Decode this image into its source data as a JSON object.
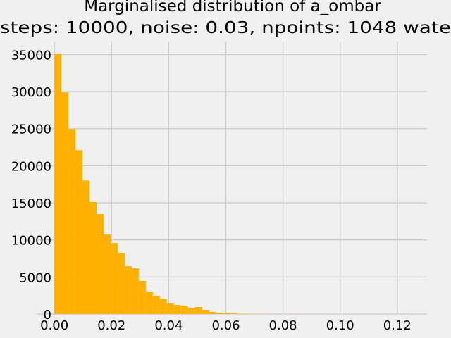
{
  "chart_data": {
    "type": "histogram",
    "title": "Marginalised distribution of a_ombar",
    "subtitle": "steps: 10000, noise: 0.03, npoints: 1048 wate",
    "color": "#ffb000",
    "bins": [
      0,
      0.00246,
      0.00492,
      0.00738,
      0.00984,
      0.0123,
      0.01476,
      0.01722,
      0.01968,
      0.02214,
      0.0246,
      0.02706,
      0.02952,
      0.03198,
      0.03444,
      0.0369,
      0.03936,
      0.04182,
      0.04428,
      0.04674,
      0.0492,
      0.05166,
      0.05412,
      0.05658,
      0.05904,
      0.0615,
      0.06396,
      0.06642,
      0.06888,
      0.07134,
      0.0738,
      0.07626,
      0.07872,
      0.08118,
      0.08364,
      0.0861,
      0.08856,
      0.09102,
      0.09348,
      0.09594,
      0.0984,
      0.10086,
      0.10332,
      0.10578,
      0.10824,
      0.1107,
      0.11316,
      0.11562,
      0.11808,
      0.12054,
      0.123
    ],
    "values": [
      35100,
      29900,
      24950,
      22100,
      18000,
      15100,
      13470,
      10720,
      9580,
      8160,
      6450,
      6170,
      4460,
      3040,
      2470,
      2090,
      1420,
      1230,
      1140,
      760,
      950,
      570,
      280,
      190,
      100,
      60,
      40,
      30,
      20,
      15,
      10,
      10,
      5,
      5,
      5,
      3,
      3,
      2,
      2,
      2,
      1,
      1,
      1,
      1,
      1,
      1,
      1,
      1,
      1,
      1
    ],
    "xlim": [
      -0.0062,
      0.1304
    ],
    "ylim": [
      0,
      36750
    ],
    "xticks": [
      {
        "value": 0,
        "label": "0.00"
      },
      {
        "value": 0.02,
        "label": "0.02"
      },
      {
        "value": 0.04,
        "label": "0.04"
      },
      {
        "value": 0.06,
        "label": "0.06"
      },
      {
        "value": 0.08,
        "label": "0.08"
      },
      {
        "value": 0.1,
        "label": "0.10"
      },
      {
        "value": 0.12,
        "label": "0.12"
      }
    ],
    "yticks": [
      0,
      5000,
      10000,
      15000,
      20000,
      25000,
      30000,
      35000
    ],
    "grid": true
  }
}
